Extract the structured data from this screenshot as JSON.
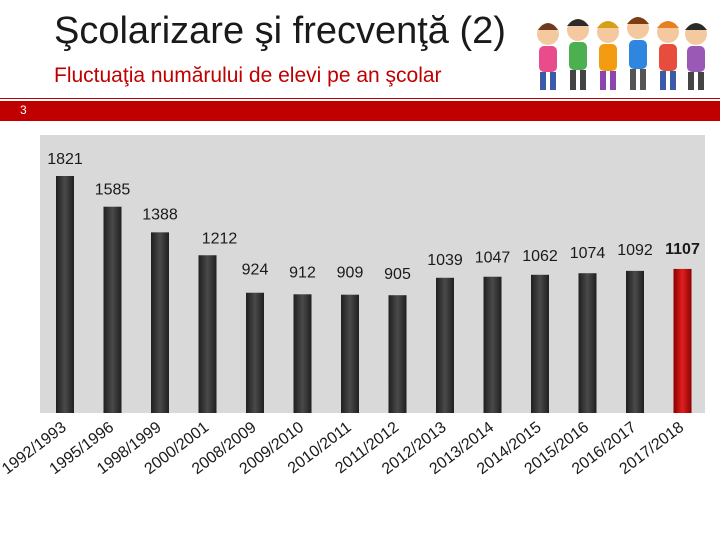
{
  "header": {
    "title": "Şcolarizare şi frecvenţă (2)",
    "subtitle": "Fluctuaţia numărului de elevi pe an şcolar",
    "page_number": "3"
  },
  "colors": {
    "accent": "#c00000",
    "bar": "#3a3a3a",
    "highlight": "#c00000",
    "plot_bg": "#d9d9d9"
  },
  "illustration": {
    "icon": "children-group-icon"
  },
  "chart_data": {
    "type": "bar",
    "categories": [
      "1992/1993",
      "1995/1996",
      "1998/1999",
      "2000/2001",
      "2008/2009",
      "2009/2010",
      "2010/2011",
      "2011/2012",
      "2012/2013",
      "2013/2014",
      "2014/2015",
      "2015/2016",
      "2016/2017",
      "2017/2018"
    ],
    "values": [
      1821,
      1585,
      1388,
      1212,
      924,
      912,
      909,
      905,
      1039,
      1047,
      1062,
      1074,
      1092,
      1107
    ],
    "value_labels": [
      "1821",
      "1585",
      "1388",
      "1212",
      "924",
      "912",
      "909",
      "905",
      "1039",
      "1047",
      "1062",
      "1074",
      "1092",
      "1107"
    ],
    "highlight_index": 13,
    "title": "",
    "xlabel": "",
    "ylabel": "",
    "ylim": [
      0,
      1900
    ],
    "grid": false,
    "legend": "none"
  }
}
